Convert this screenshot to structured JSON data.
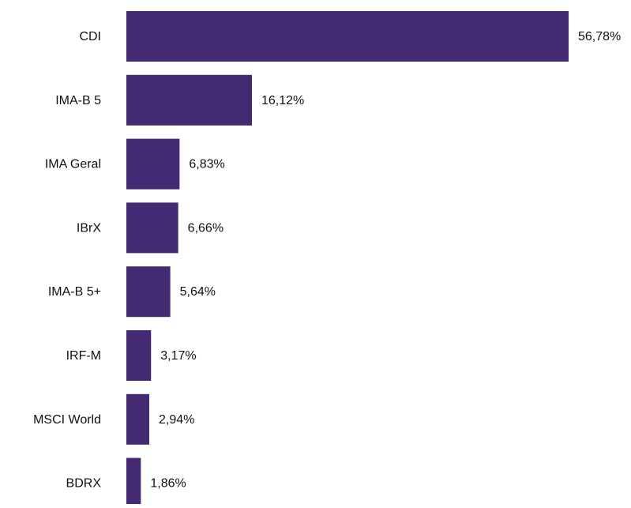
{
  "chart_data": {
    "type": "bar",
    "orientation": "horizontal",
    "categories": [
      "CDI",
      "IMA-B 5",
      "IMA Geral",
      "IBrX",
      "IMA-B 5+",
      "IRF-M",
      "MSCI World",
      "BDRX"
    ],
    "values": [
      56.78,
      16.12,
      6.83,
      6.66,
      5.64,
      3.17,
      2.94,
      1.86
    ],
    "value_labels": [
      "56,78%",
      "16,12%",
      "6,83%",
      "6,66%",
      "5,64%",
      "3,17%",
      "2,94%",
      "1,86%"
    ],
    "title": "",
    "xlabel": "",
    "ylabel": "",
    "xlim": [
      0,
      56.78
    ],
    "grid": false,
    "legend": "none",
    "colors": {
      "bar": "#432A72",
      "text": "#111111"
    }
  }
}
